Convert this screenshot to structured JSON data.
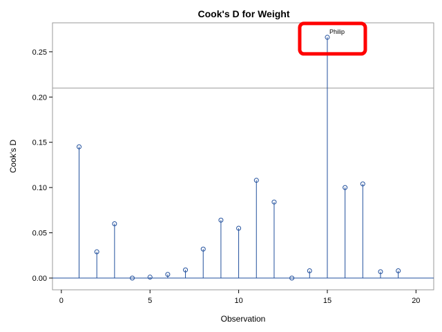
{
  "chart_data": {
    "type": "scatter",
    "title": "Cook's D for Weight",
    "xlabel": "Observation",
    "ylabel": "Cook's D",
    "xlim": [
      -0.5,
      21
    ],
    "ylim": [
      -0.013,
      0.282
    ],
    "xticks": [
      0,
      5,
      10,
      15,
      20
    ],
    "xtick_labels": [
      "0",
      "5",
      "10",
      "15",
      "20"
    ],
    "yticks": [
      0,
      0.05,
      0.1,
      0.15,
      0.2,
      0.25
    ],
    "ytick_labels": [
      "0.00",
      "0.05",
      "0.10",
      "0.15",
      "0.20",
      "0.25"
    ],
    "grid": false,
    "style": "needle",
    "reference_line_y": 0.21,
    "x": [
      1,
      2,
      3,
      4,
      5,
      6,
      7,
      8,
      9,
      10,
      11,
      12,
      13,
      14,
      15,
      16,
      17,
      18,
      19
    ],
    "y": [
      0.145,
      0.029,
      0.06,
      0.0,
      0.001,
      0.004,
      0.009,
      0.032,
      0.064,
      0.055,
      0.108,
      0.084,
      0.0,
      0.008,
      0.266,
      0.1,
      0.104,
      0.007,
      0.008
    ],
    "annotations": [
      {
        "x": 15,
        "y": 0.266,
        "text": "Philip"
      }
    ],
    "highlight_box": {
      "x": 15,
      "y": 0.266,
      "color": "#ff0000"
    }
  },
  "colors": {
    "needle": "#1f4e9c",
    "marker": "#1f4e9c",
    "reference_line": "#999999",
    "baseline": "#1f4e9c",
    "frame": "#999999",
    "highlight": "#ff0000"
  }
}
